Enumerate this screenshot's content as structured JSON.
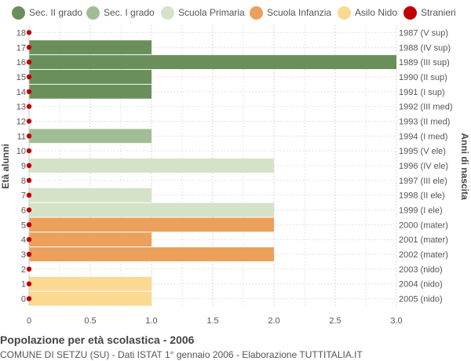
{
  "legend": [
    {
      "label": "Sec. II grado",
      "color": "#6b8f5a"
    },
    {
      "label": "Sec. I grado",
      "color": "#a1bd95"
    },
    {
      "label": "Scuola Primaria",
      "color": "#d4e2c8"
    },
    {
      "label": "Scuola Infanzia",
      "color": "#eca05b"
    },
    {
      "label": "Asilo Nido",
      "color": "#fbd991"
    },
    {
      "label": "Stranieri",
      "color": "#c00000"
    }
  ],
  "footer": {
    "title": "Popolazione per età scolastica - 2006",
    "subtitle": "COMUNE DI SETZU (SU) - Dati ISTAT 1° gennaio 2006 - Elaborazione TUTTITALIA.IT"
  },
  "chart_data": {
    "type": "bar",
    "orientation": "horizontal",
    "ylabel": "Età alunni",
    "ylabel_right": "Anni di nascita",
    "xlim": [
      0,
      3
    ],
    "xticks": [
      "0",
      "0.5",
      "1.0",
      "1.5",
      "2.0",
      "2.5",
      "3.0"
    ],
    "grid": true,
    "legend_position": "top",
    "ages": [
      "18",
      "17",
      "16",
      "15",
      "14",
      "13",
      "12",
      "11",
      "10",
      "9",
      "8",
      "7",
      "6",
      "5",
      "4",
      "3",
      "2",
      "1",
      "0"
    ],
    "birth_years": [
      "1987 (V sup)",
      "1988 (IV sup)",
      "1989 (III sup)",
      "1990 (II sup)",
      "1991 (I sup)",
      "1992 (III med)",
      "1993 (II med)",
      "1994 (I med)",
      "1995 (V ele)",
      "1996 (IV ele)",
      "1997 (III ele)",
      "1998 (II ele)",
      "1999 (I ele)",
      "2000 (mater)",
      "2001 (mater)",
      "2002 (mater)",
      "2003 (nido)",
      "2004 (nido)",
      "2005 (nido)"
    ],
    "values": [
      0,
      1,
      3,
      1,
      1,
      0,
      0,
      1,
      0,
      2,
      0,
      1,
      2,
      2,
      1,
      2,
      0,
      1,
      1
    ],
    "categories": [
      "Sec. II grado",
      "Sec. II grado",
      "Sec. II grado",
      "Sec. II grado",
      "Sec. II grado",
      "Sec. I grado",
      "Sec. I grado",
      "Sec. I grado",
      "Scuola Primaria",
      "Scuola Primaria",
      "Scuola Primaria",
      "Scuola Primaria",
      "Scuola Primaria",
      "Scuola Infanzia",
      "Scuola Infanzia",
      "Scuola Infanzia",
      "Asilo Nido",
      "Asilo Nido",
      "Asilo Nido"
    ],
    "stranieri": [
      0,
      0,
      0,
      0,
      0,
      0,
      0,
      0,
      0,
      0,
      0,
      0,
      0,
      0,
      0,
      0,
      0,
      0,
      0
    ]
  }
}
